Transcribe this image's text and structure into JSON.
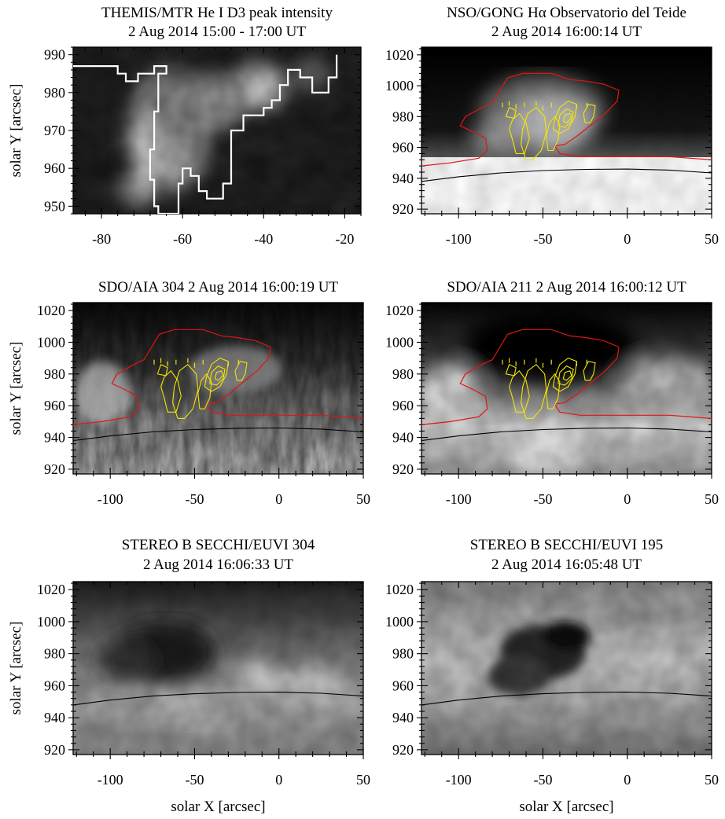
{
  "chart_data": [
    {
      "type": "heatmap",
      "panel": "themis-he-d3",
      "title": "THEMIS/MTR  He I D3 peak intensity",
      "subtitle": "2 Aug 2014 15:00 - 17:00 UT",
      "xlabel": "",
      "ylabel": "solar Y  [arcsec]",
      "xlim": [
        -87,
        -16
      ],
      "ylim": [
        948,
        992
      ],
      "xticks": [
        -80,
        -60,
        -40,
        -20
      ],
      "yticks": [
        950,
        960,
        970,
        980,
        990
      ],
      "colormap": "gray",
      "contour_color": "#ffffff",
      "contour": [
        [
          -87,
          987
        ],
        [
          -76,
          987
        ],
        [
          -76,
          985
        ],
        [
          -74,
          985
        ],
        [
          -74,
          983
        ],
        [
          -71,
          983
        ],
        [
          -71,
          985
        ],
        [
          -67,
          985
        ],
        [
          -67,
          987
        ],
        [
          -64,
          987
        ],
        [
          -64,
          985
        ],
        [
          -66,
          985
        ],
        [
          -66,
          975
        ],
        [
          -67,
          975
        ],
        [
          -67,
          965
        ],
        [
          -68,
          965
        ],
        [
          -68,
          957
        ],
        [
          -67,
          957
        ],
        [
          -67,
          950
        ],
        [
          -66,
          950
        ],
        [
          -66,
          948
        ],
        [
          -61,
          948
        ],
        [
          -61,
          956
        ],
        [
          -60,
          956
        ],
        [
          -60,
          960
        ],
        [
          -58,
          960
        ],
        [
          -58,
          958
        ],
        [
          -56,
          958
        ],
        [
          -56,
          954
        ],
        [
          -54,
          954
        ],
        [
          -54,
          952
        ],
        [
          -50,
          952
        ],
        [
          -50,
          956
        ],
        [
          -48,
          956
        ],
        [
          -48,
          970
        ],
        [
          -45,
          970
        ],
        [
          -45,
          974
        ],
        [
          -40,
          974
        ],
        [
          -40,
          976
        ],
        [
          -38,
          976
        ],
        [
          -38,
          978
        ],
        [
          -36,
          978
        ],
        [
          -36,
          982
        ],
        [
          -34,
          982
        ],
        [
          -34,
          986
        ],
        [
          -31,
          986
        ],
        [
          -31,
          984
        ],
        [
          -28,
          984
        ],
        [
          -28,
          980
        ],
        [
          -24,
          980
        ],
        [
          -24,
          984
        ],
        [
          -22,
          984
        ],
        [
          -22,
          990
        ]
      ]
    },
    {
      "type": "heatmap",
      "panel": "gong-halpha",
      "title": "NSO/GONG Hα  Observatorio del Teide",
      "subtitle": "2 Aug 2014 16:00:14 UT",
      "xlabel": "",
      "ylabel": "",
      "xlim": [
        -122,
        50
      ],
      "ylim": [
        917,
        1025
      ],
      "xticks": [
        -100,
        -50,
        0,
        50
      ],
      "yticks": [
        920,
        940,
        960,
        980,
        1000,
        1020
      ],
      "colormap": "gray",
      "limb_color": "#000000",
      "contours": [
        "red",
        "yellow"
      ]
    },
    {
      "type": "heatmap",
      "panel": "aia-304",
      "title": "SDO/AIA 304   2 Aug 2014 16:00:19 UT",
      "xlabel": "",
      "ylabel": "solar Y  [arcsec]",
      "xlim": [
        -122,
        50
      ],
      "ylim": [
        917,
        1025
      ],
      "xticks": [
        -100,
        -50,
        0,
        50
      ],
      "yticks": [
        920,
        940,
        960,
        980,
        1000,
        1020
      ],
      "colormap": "gray",
      "limb_color": "#000000",
      "contours": [
        "red",
        "yellow"
      ]
    },
    {
      "type": "heatmap",
      "panel": "aia-211",
      "title": "SDO/AIA 211   2 Aug 2014 16:00:12 UT",
      "xlabel": "",
      "ylabel": "",
      "xlim": [
        -122,
        50
      ],
      "ylim": [
        917,
        1025
      ],
      "xticks": [
        -100,
        -50,
        0,
        50
      ],
      "yticks": [
        920,
        940,
        960,
        980,
        1000,
        1020
      ],
      "colormap": "gray",
      "limb_color": "#000000",
      "contours": [
        "red",
        "yellow"
      ]
    },
    {
      "type": "heatmap",
      "panel": "stereo-304",
      "title": "STEREO B  SECCHI/EUVI  304",
      "subtitle": "2 Aug 2014  16:06:33 UT",
      "xlabel": "solar X  [arcsec]",
      "ylabel": "solar Y  [arcsec]",
      "xlim": [
        -122,
        50
      ],
      "ylim": [
        917,
        1025
      ],
      "xticks": [
        -100,
        -50,
        0,
        50
      ],
      "yticks": [
        920,
        940,
        960,
        980,
        1000,
        1020
      ],
      "colormap": "gray",
      "limb_color": "#000000"
    },
    {
      "type": "heatmap",
      "panel": "stereo-195",
      "title": "STEREO B  SECCHI/EUVI  195",
      "subtitle": "2 Aug 2014  16:05:48 UT",
      "xlabel": "solar X  [arcsec]",
      "ylabel": "",
      "xlim": [
        -122,
        50
      ],
      "ylim": [
        917,
        1025
      ],
      "xticks": [
        -100,
        -50,
        0,
        50
      ],
      "yticks": [
        920,
        940,
        960,
        980,
        1000,
        1020
      ],
      "colormap": "gray",
      "limb_color": "#000000"
    }
  ],
  "overlays": {
    "red_contour": [
      [
        -122,
        948
      ],
      [
        -105,
        950
      ],
      [
        -88,
        953
      ],
      [
        -83,
        958
      ],
      [
        -84,
        966
      ],
      [
        -91,
        970
      ],
      [
        -99,
        974
      ],
      [
        -96,
        980
      ],
      [
        -86,
        986
      ],
      [
        -80,
        989
      ],
      [
        -76,
        996
      ],
      [
        -71,
        1005
      ],
      [
        -62,
        1008
      ],
      [
        -45,
        1008
      ],
      [
        -34,
        1004
      ],
      [
        -25,
        1003
      ],
      [
        -14,
        1001
      ],
      [
        -5,
        997
      ],
      [
        -6,
        990
      ],
      [
        -13,
        982
      ],
      [
        -21,
        975
      ],
      [
        -29,
        968
      ],
      [
        -37,
        962
      ],
      [
        -43,
        961
      ],
      [
        -40,
        956
      ],
      [
        -28,
        954
      ],
      [
        0,
        954
      ],
      [
        25,
        954
      ],
      [
        50,
        952
      ]
    ],
    "yellow_contours": [
      [
        [
          -66,
          956
        ],
        [
          -68,
          965
        ],
        [
          -70,
          972
        ],
        [
          -68,
          978
        ],
        [
          -64,
          982
        ],
        [
          -60,
          976
        ],
        [
          -58,
          966
        ],
        [
          -61,
          956
        ],
        [
          -66,
          956
        ]
      ],
      [
        [
          -60,
          952
        ],
        [
          -63,
          962
        ],
        [
          -62,
          972
        ],
        [
          -59,
          982
        ],
        [
          -54,
          986
        ],
        [
          -49,
          980
        ],
        [
          -48,
          970
        ],
        [
          -51,
          958
        ],
        [
          -56,
          952
        ],
        [
          -60,
          952
        ]
      ],
      [
        [
          -47,
          958
        ],
        [
          -48,
          968
        ],
        [
          -46,
          976
        ],
        [
          -43,
          980
        ],
        [
          -40,
          975
        ],
        [
          -41,
          965
        ],
        [
          -44,
          958
        ],
        [
          -47,
          958
        ]
      ],
      [
        [
          -44,
          972
        ],
        [
          -43,
          978
        ],
        [
          -40,
          986
        ],
        [
          -35,
          990
        ],
        [
          -30,
          988
        ],
        [
          -31,
          980
        ],
        [
          -35,
          972
        ],
        [
          -40,
          969
        ],
        [
          -44,
          972
        ]
      ],
      [
        [
          -41,
          974
        ],
        [
          -40,
          981
        ],
        [
          -36,
          985
        ],
        [
          -32,
          983
        ],
        [
          -33,
          977
        ],
        [
          -37,
          973
        ],
        [
          -41,
          974
        ]
      ],
      [
        [
          -38,
          977
        ],
        [
          -37,
          981
        ],
        [
          -34,
          982
        ],
        [
          -33,
          979
        ],
        [
          -36,
          976
        ],
        [
          -38,
          977
        ]
      ],
      [
        [
          -72,
          980
        ],
        [
          -70,
          986
        ],
        [
          -66,
          984
        ],
        [
          -67,
          979
        ],
        [
          -72,
          980
        ]
      ],
      [
        [
          -25,
          976
        ],
        [
          -26,
          982
        ],
        [
          -23,
          988
        ],
        [
          -19,
          987
        ],
        [
          -20,
          980
        ],
        [
          -22,
          976
        ],
        [
          -25,
          976
        ]
      ]
    ],
    "yellow_ticks": [
      [
        -74,
        989
      ],
      [
        -70,
        990
      ],
      [
        -66,
        988
      ],
      [
        -61,
        989
      ],
      [
        -54,
        990
      ],
      [
        -50,
        987
      ],
      [
        -45,
        989
      ],
      [
        -30,
        988
      ],
      [
        -24,
        989
      ]
    ],
    "limb": [
      [
        -122,
        938
      ],
      [
        -100,
        941
      ],
      [
        -75,
        943.5
      ],
      [
        -50,
        945
      ],
      [
        -25,
        945.8
      ],
      [
        0,
        946
      ],
      [
        25,
        945.3
      ],
      [
        50,
        943.5
      ]
    ]
  }
}
